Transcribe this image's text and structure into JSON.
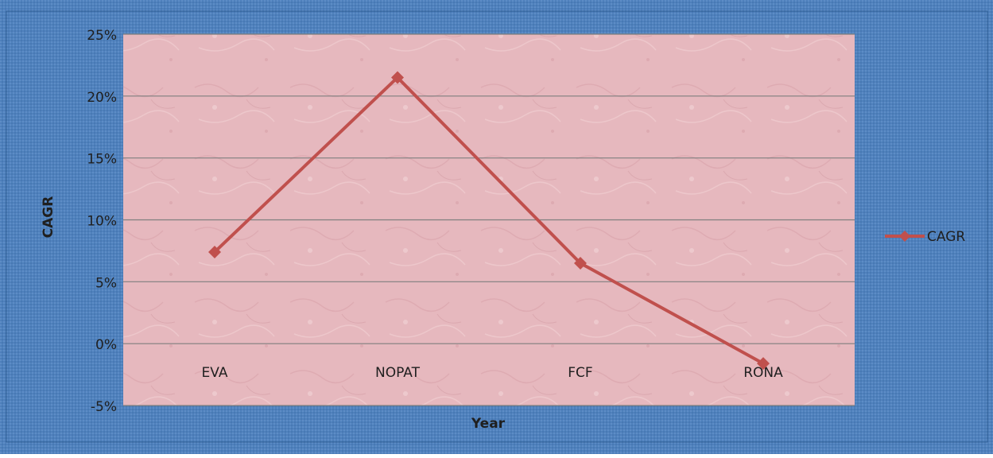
{
  "colors": {
    "outer_background": "#4f81bd",
    "plot_background": "#e8b9bf",
    "line": "#c0504d",
    "gridline": "#7f7f7f",
    "text": "#1f1f1f"
  },
  "chart_data": {
    "type": "line",
    "categories": [
      "EVA",
      "NOPAT",
      "FCF",
      "RONA"
    ],
    "series": [
      {
        "name": "CAGR",
        "values": [
          7.4,
          21.5,
          6.5,
          -1.6
        ]
      }
    ],
    "xlabel": "Year",
    "ylabel": "CAGR",
    "ylim": [
      -5,
      25
    ],
    "yticks": [
      -5,
      0,
      5,
      10,
      15,
      20,
      25
    ],
    "ytick_labels": [
      "-5%",
      "0%",
      "5%",
      "10%",
      "15%",
      "20%",
      "25%"
    ],
    "grid": true,
    "legend_position": "right",
    "marker": "diamond"
  }
}
